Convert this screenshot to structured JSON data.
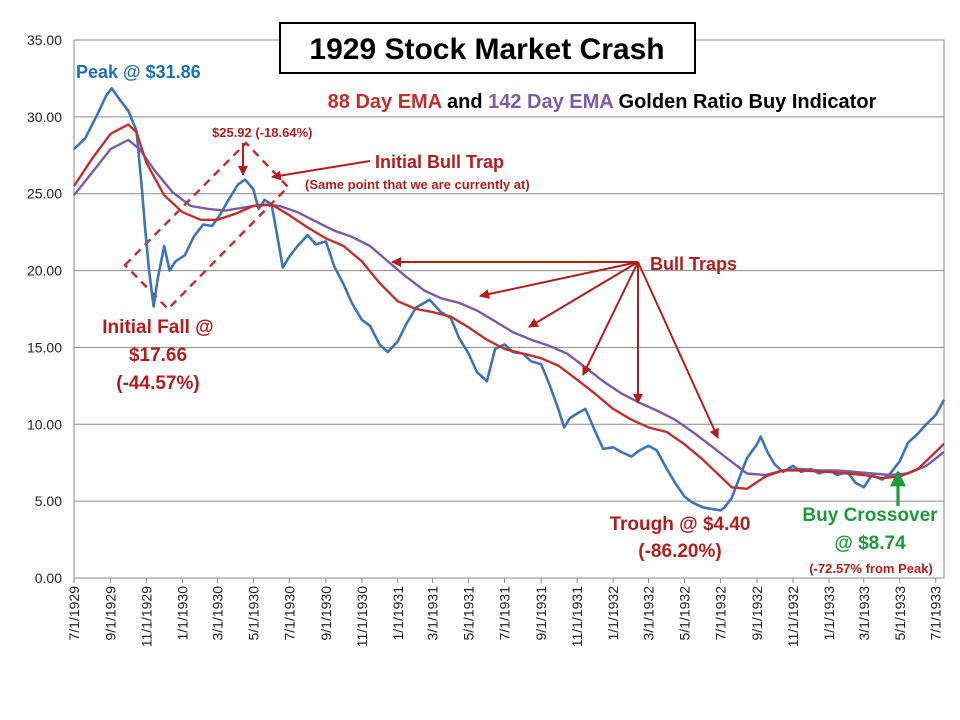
{
  "chart_data": {
    "type": "line",
    "title": "1929 Stock Market Crash",
    "subtitle": {
      "part1": "88 Day EMA",
      "part2": " and ",
      "part3": "142 Day EMA",
      "part4": " Golden Ratio Buy Indicator"
    },
    "xlabel": "",
    "ylabel": "",
    "x_range": [
      "1929-07-01",
      "1933-07-15"
    ],
    "ylim": [
      0,
      35
    ],
    "grid": true,
    "y_ticks": [
      "0.00",
      "5.00",
      "10.00",
      "15.00",
      "20.00",
      "25.00",
      "30.00",
      "35.00"
    ],
    "y_tick_values": [
      0,
      5,
      10,
      15,
      20,
      25,
      30,
      35
    ],
    "x_ticks": [
      "7/1/1929",
      "9/1/1929",
      "11/1/1929",
      "1/1/1930",
      "3/1/1930",
      "5/1/1930",
      "7/1/1930",
      "9/1/1930",
      "11/1/1930",
      "1/1/1931",
      "3/1/1931",
      "5/1/1931",
      "7/1/1931",
      "9/1/1931",
      "11/1/1931",
      "1/1/1932",
      "3/1/1932",
      "5/1/1932",
      "7/1/1932",
      "9/1/1932",
      "11/1/1932",
      "1/1/1933",
      "3/1/1933",
      "5/1/1933",
      "7/1/1933"
    ],
    "x_tick_dates": [
      "1929-07-01",
      "1929-09-01",
      "1929-11-01",
      "1930-01-01",
      "1930-03-01",
      "1930-05-01",
      "1930-07-01",
      "1930-09-01",
      "1930-11-01",
      "1931-01-01",
      "1931-03-01",
      "1931-05-01",
      "1931-07-01",
      "1931-09-01",
      "1931-11-01",
      "1932-01-01",
      "1932-03-01",
      "1932-05-01",
      "1932-07-01",
      "1932-09-01",
      "1932-11-01",
      "1933-01-01",
      "1933-03-01",
      "1933-05-01",
      "1933-07-01"
    ],
    "colors": {
      "price": "#3d74b5",
      "ema88": "#c0302e",
      "ema142": "#7b5aa6",
      "annotation": "#b01e1e",
      "peak": "#1f6fb3",
      "buy": "#1f9a3b"
    },
    "series": [
      {
        "key": "price",
        "x": [
          "1929-07-01",
          "1929-07-20",
          "1929-08-10",
          "1929-08-25",
          "1929-09-03",
          "1929-09-15",
          "1929-10-01",
          "1929-10-15",
          "1929-10-24",
          "1929-10-29",
          "1929-11-05",
          "1929-11-13",
          "1929-11-20",
          "1929-12-01",
          "1929-12-10",
          "1929-12-20",
          "1930-01-05",
          "1930-01-20",
          "1930-02-05",
          "1930-02-20",
          "1930-03-05",
          "1930-03-20",
          "1930-04-05",
          "1930-04-17",
          "1930-05-01",
          "1930-05-10",
          "1930-05-20",
          "1930-06-01",
          "1930-06-10",
          "1930-06-20",
          "1930-07-01",
          "1930-07-15",
          "1930-08-01",
          "1930-08-15",
          "1930-09-01",
          "1930-09-15",
          "1930-10-01",
          "1930-10-15",
          "1930-11-01",
          "1930-11-15",
          "1930-12-01",
          "1930-12-15",
          "1931-01-01",
          "1931-01-15",
          "1931-02-01",
          "1931-02-24",
          "1931-03-15",
          "1931-04-01",
          "1931-04-15",
          "1931-05-01",
          "1931-05-15",
          "1931-06-01",
          "1931-06-15",
          "1931-07-01",
          "1931-07-15",
          "1931-08-01",
          "1931-08-15",
          "1931-09-01",
          "1931-09-15",
          "1931-10-01",
          "1931-10-10",
          "1931-10-20",
          "1931-11-01",
          "1931-11-15",
          "1931-12-01",
          "1931-12-15",
          "1932-01-01",
          "1932-01-15",
          "1932-02-01",
          "1932-02-15",
          "1932-03-01",
          "1932-03-15",
          "1932-04-01",
          "1932-04-15",
          "1932-05-01",
          "1932-05-15",
          "1932-06-01",
          "1932-06-15",
          "1932-07-01",
          "1932-07-08",
          "1932-07-20",
          "1932-08-01",
          "1932-08-15",
          "1932-09-01",
          "1932-09-07",
          "1932-09-20",
          "1932-10-01",
          "1932-10-15",
          "1932-11-01",
          "1932-11-15",
          "1932-12-01",
          "1932-12-15",
          "1933-01-01",
          "1933-01-15",
          "1933-02-01",
          "1933-02-15",
          "1933-03-01",
          "1933-03-15",
          "1933-04-01",
          "1933-04-15",
          "1933-05-01",
          "1933-05-15",
          "1933-06-01",
          "1933-06-15",
          "1933-07-01",
          "1933-07-15"
        ],
        "values": [
          27.9,
          28.6,
          30.2,
          31.4,
          31.86,
          31.2,
          30.4,
          29.1,
          25.4,
          23.0,
          20.1,
          17.66,
          19.5,
          21.6,
          20.0,
          20.6,
          21.0,
          22.2,
          23.0,
          22.9,
          23.6,
          24.6,
          25.6,
          25.92,
          25.3,
          24.0,
          24.6,
          24.3,
          22.4,
          20.2,
          20.9,
          21.6,
          22.3,
          21.7,
          21.9,
          20.3,
          19.1,
          17.9,
          16.8,
          16.4,
          15.2,
          14.7,
          15.4,
          16.5,
          17.6,
          18.1,
          17.3,
          16.9,
          15.6,
          14.6,
          13.4,
          12.8,
          14.9,
          15.2,
          14.7,
          14.6,
          14.1,
          13.9,
          12.6,
          10.9,
          9.8,
          10.4,
          10.7,
          11.0,
          9.6,
          8.4,
          8.5,
          8.2,
          7.9,
          8.3,
          8.6,
          8.3,
          7.1,
          6.2,
          5.3,
          4.9,
          4.6,
          4.5,
          4.4,
          4.6,
          5.2,
          6.4,
          7.8,
          8.7,
          9.2,
          8.1,
          7.4,
          6.9,
          7.3,
          6.9,
          7.1,
          6.8,
          7.0,
          6.7,
          6.9,
          6.2,
          5.9,
          6.7,
          6.4,
          6.8,
          7.6,
          8.8,
          9.4,
          10.0,
          10.6,
          11.6
        ]
      },
      {
        "key": "ema88",
        "x": [
          "1929-07-01",
          "1929-08-01",
          "1929-09-01",
          "1929-10-01",
          "1929-10-15",
          "1929-11-01",
          "1929-12-01",
          "1930-01-01",
          "1930-02-01",
          "1930-03-01",
          "1930-04-01",
          "1930-05-01",
          "1930-06-01",
          "1930-07-01",
          "1930-08-01",
          "1930-09-01",
          "1930-10-01",
          "1930-11-01",
          "1930-12-01",
          "1931-01-01",
          "1931-02-01",
          "1931-03-01",
          "1931-04-01",
          "1931-05-01",
          "1931-06-01",
          "1931-07-01",
          "1931-08-01",
          "1931-09-01",
          "1931-10-01",
          "1931-11-01",
          "1931-12-01",
          "1932-01-01",
          "1932-02-01",
          "1932-03-01",
          "1932-04-01",
          "1932-05-01",
          "1932-06-01",
          "1932-07-01",
          "1932-07-20",
          "1932-08-15",
          "1932-09-15",
          "1932-10-15",
          "1932-11-15",
          "1933-01-01",
          "1933-02-01",
          "1933-03-01",
          "1933-04-01",
          "1933-05-01",
          "1933-06-01",
          "1933-07-01",
          "1933-07-15"
        ],
        "values": [
          25.5,
          27.3,
          28.9,
          29.5,
          29.0,
          27.0,
          24.9,
          23.8,
          23.3,
          23.3,
          23.7,
          24.2,
          24.3,
          23.6,
          22.8,
          22.1,
          21.6,
          20.6,
          19.2,
          18.0,
          17.5,
          17.3,
          17.0,
          16.3,
          15.5,
          14.9,
          14.6,
          14.3,
          13.8,
          12.9,
          12.0,
          11.0,
          10.3,
          9.8,
          9.5,
          8.7,
          7.7,
          6.6,
          5.9,
          5.8,
          6.6,
          7.0,
          7.0,
          6.9,
          6.8,
          6.7,
          6.5,
          6.6,
          7.1,
          8.2,
          8.74
        ]
      },
      {
        "key": "ema142",
        "x": [
          "1929-07-01",
          "1929-08-01",
          "1929-09-01",
          "1929-10-01",
          "1929-10-20",
          "1929-11-15",
          "1929-12-15",
          "1930-01-15",
          "1930-02-15",
          "1930-03-15",
          "1930-04-15",
          "1930-05-15",
          "1930-06-15",
          "1930-07-15",
          "1930-08-15",
          "1930-09-15",
          "1930-10-15",
          "1930-11-15",
          "1930-12-15",
          "1931-01-15",
          "1931-02-15",
          "1931-03-15",
          "1931-04-15",
          "1931-05-15",
          "1931-06-15",
          "1931-07-15",
          "1931-08-15",
          "1931-09-15",
          "1931-10-15",
          "1931-11-15",
          "1931-12-15",
          "1932-01-15",
          "1932-02-15",
          "1932-03-15",
          "1932-04-15",
          "1932-05-15",
          "1932-06-15",
          "1932-07-15",
          "1932-08-15",
          "1932-09-15",
          "1932-10-15",
          "1932-11-15",
          "1932-12-15",
          "1933-01-15",
          "1933-02-15",
          "1933-03-15",
          "1933-04-15",
          "1933-05-15",
          "1933-06-15",
          "1933-07-15"
        ],
        "values": [
          24.9,
          26.4,
          27.9,
          28.5,
          27.9,
          26.5,
          25.1,
          24.2,
          24.0,
          23.9,
          24.1,
          24.3,
          24.2,
          23.8,
          23.2,
          22.6,
          22.2,
          21.6,
          20.6,
          19.6,
          18.7,
          18.2,
          17.9,
          17.4,
          16.7,
          16.0,
          15.5,
          15.1,
          14.6,
          13.7,
          12.8,
          12.0,
          11.4,
          10.9,
          10.3,
          9.5,
          8.6,
          7.7,
          6.8,
          6.7,
          7.0,
          7.1,
          7.0,
          7.0,
          6.9,
          6.8,
          6.7,
          6.8,
          7.3,
          8.2
        ]
      }
    ],
    "annotations": [
      {
        "text": "Peak @ $31.86",
        "color": "#1f6fb3"
      },
      {
        "text": "$25.92 (-18.64%)",
        "color": "#b01e1e"
      },
      {
        "text": "Initial Bull Trap",
        "color": "#b01e1e"
      },
      {
        "text": "(Same point that we are currently at)",
        "color": "#b01e1e"
      },
      {
        "text": "Bull Traps",
        "color": "#b01e1e"
      },
      {
        "text": "Initial Fall @",
        "color": "#b01e1e"
      },
      {
        "text": "$17.66",
        "color": "#b01e1e"
      },
      {
        "text": "(-44.57%)",
        "color": "#b01e1e"
      },
      {
        "text": "Trough @ $4.40",
        "color": "#b01e1e"
      },
      {
        "text": "(-86.20%)",
        "color": "#b01e1e"
      },
      {
        "text": "Buy Crossover",
        "color": "#1f9a3b"
      },
      {
        "text": "@ $8.74",
        "color": "#1f9a3b"
      },
      {
        "text": "(-72.57% from Peak)",
        "color": "#b01e1e"
      }
    ]
  }
}
